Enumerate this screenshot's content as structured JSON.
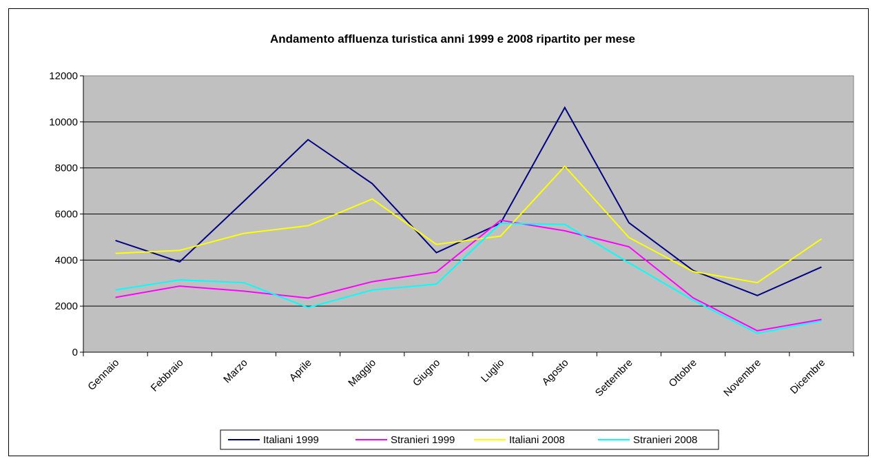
{
  "chart_data": {
    "type": "line",
    "title": "Andamento affluenza turistica anni 1999 e 2008 ripartito per mese",
    "categories": [
      "Gennaio",
      "Febbraio",
      "Marzo",
      "Aprile",
      "Maggio",
      "Giugno",
      "Luglio",
      "Agosto",
      "Settembre",
      "Ottobre",
      "Novembre",
      "Dicembre"
    ],
    "ylim": [
      0,
      12000
    ],
    "yticks": [
      0,
      2000,
      4000,
      6000,
      8000,
      10000,
      12000
    ],
    "grid": true,
    "legend_position": "bottom",
    "plot_background": "#c0c0c0",
    "series": [
      {
        "name": "Italiani 1999",
        "color": "#000080",
        "values": [
          4850,
          3920,
          6550,
          9230,
          7320,
          4320,
          5600,
          10620,
          5620,
          3550,
          2460,
          3700
        ]
      },
      {
        "name": "Stranieri 1999",
        "color": "#ff00ff",
        "values": [
          2380,
          2870,
          2650,
          2350,
          3060,
          3480,
          5730,
          5270,
          4580,
          2360,
          930,
          1420
        ]
      },
      {
        "name": "Italiani 2008",
        "color": "#ffff00",
        "values": [
          4290,
          4420,
          5160,
          5490,
          6650,
          4680,
          5040,
          8070,
          4980,
          3500,
          3020,
          4920
        ]
      },
      {
        "name": "Stranieri 2008",
        "color": "#00ffff",
        "values": [
          2700,
          3140,
          3020,
          1940,
          2700,
          2960,
          5600,
          5550,
          3880,
          2260,
          820,
          1360
        ]
      }
    ]
  }
}
